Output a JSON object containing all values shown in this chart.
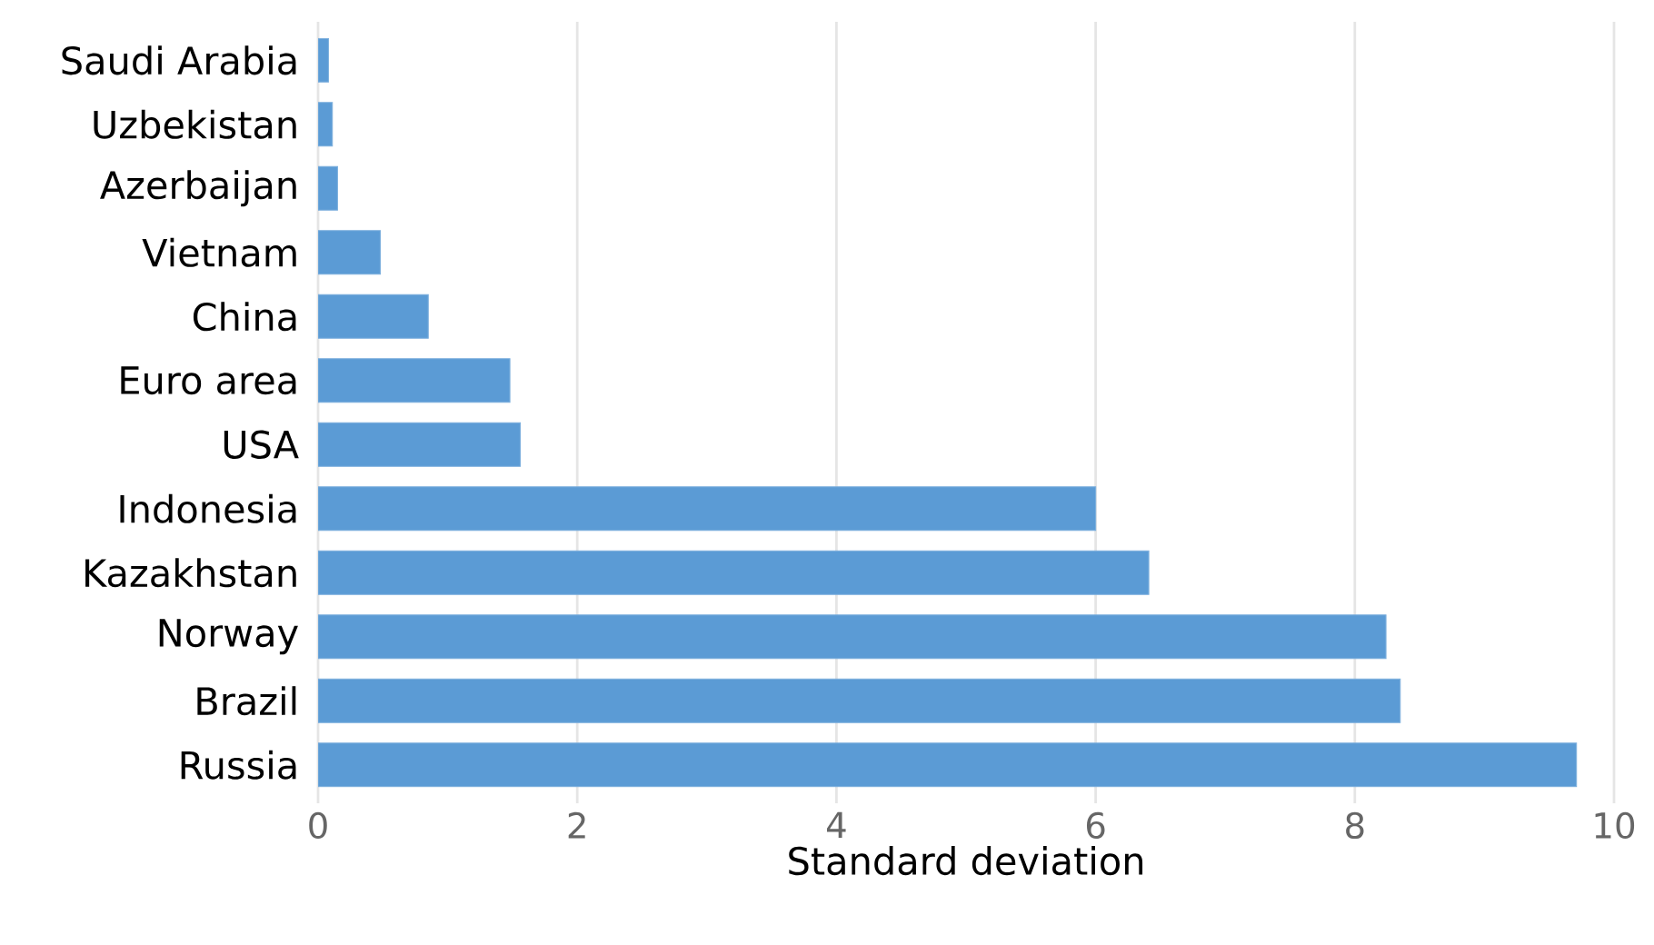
{
  "chart_data": {
    "type": "bar",
    "orientation": "horizontal",
    "xlabel": "Standard deviation",
    "categories": [
      "Saudi Arabia",
      "Uzbekistan",
      "Azerbaijan",
      "Vietnam",
      "China",
      "Euro area",
      "USA",
      "Indonesia",
      "Kazakhstan",
      "Norway",
      "Brazil",
      "Russia"
    ],
    "values": [
      0.08,
      0.11,
      0.15,
      0.48,
      0.85,
      1.48,
      1.56,
      6.0,
      6.41,
      8.24,
      8.35,
      9.71
    ],
    "color": "#5b9bd5",
    "xlim": [
      0,
      10
    ],
    "xticks": [
      0,
      2,
      4,
      6,
      8,
      10
    ],
    "grid": "x"
  }
}
